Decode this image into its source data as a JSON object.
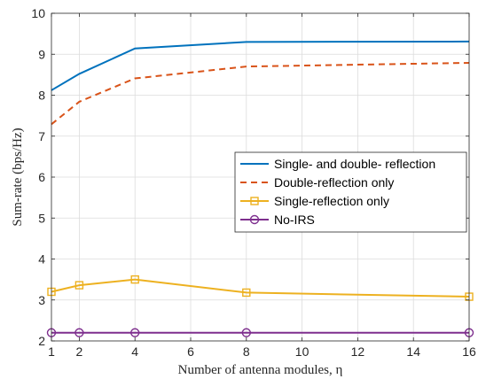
{
  "chart_data": {
    "type": "line",
    "title": "",
    "xlabel": "Number of antenna modules, η",
    "ylabel": "Sum-rate (bps/Hz)",
    "xlim": [
      1,
      16
    ],
    "ylim": [
      2,
      10
    ],
    "xticks": [
      1,
      2,
      4,
      6,
      8,
      10,
      12,
      14,
      16
    ],
    "yticks": [
      2,
      3,
      4,
      5,
      6,
      7,
      8,
      9,
      10
    ],
    "grid": true,
    "legend_position": "center-right",
    "series": [
      {
        "name": "Single- and double- reflection",
        "color": "#0072BD",
        "line_style": "solid",
        "marker": "none",
        "x": [
          1,
          2,
          4,
          8,
          16
        ],
        "y": [
          8.12,
          8.52,
          9.14,
          9.3,
          9.31
        ]
      },
      {
        "name": "Double-reflection only",
        "color": "#D95319",
        "line_style": "dashed",
        "marker": "none",
        "x": [
          1,
          2,
          4,
          8,
          16
        ],
        "y": [
          7.29,
          7.84,
          8.41,
          8.7,
          8.79
        ]
      },
      {
        "name": "Single-reflection only",
        "color": "#EDB120",
        "line_style": "solid",
        "marker": "square",
        "x": [
          1,
          2,
          4,
          8,
          16
        ],
        "y": [
          3.2,
          3.36,
          3.5,
          3.18,
          3.08
        ]
      },
      {
        "name": "No-IRS",
        "color": "#7E2F8E",
        "line_style": "solid",
        "marker": "circle",
        "x": [
          1,
          2,
          4,
          8,
          16
        ],
        "y": [
          2.2,
          2.2,
          2.2,
          2.2,
          2.2
        ]
      }
    ]
  }
}
